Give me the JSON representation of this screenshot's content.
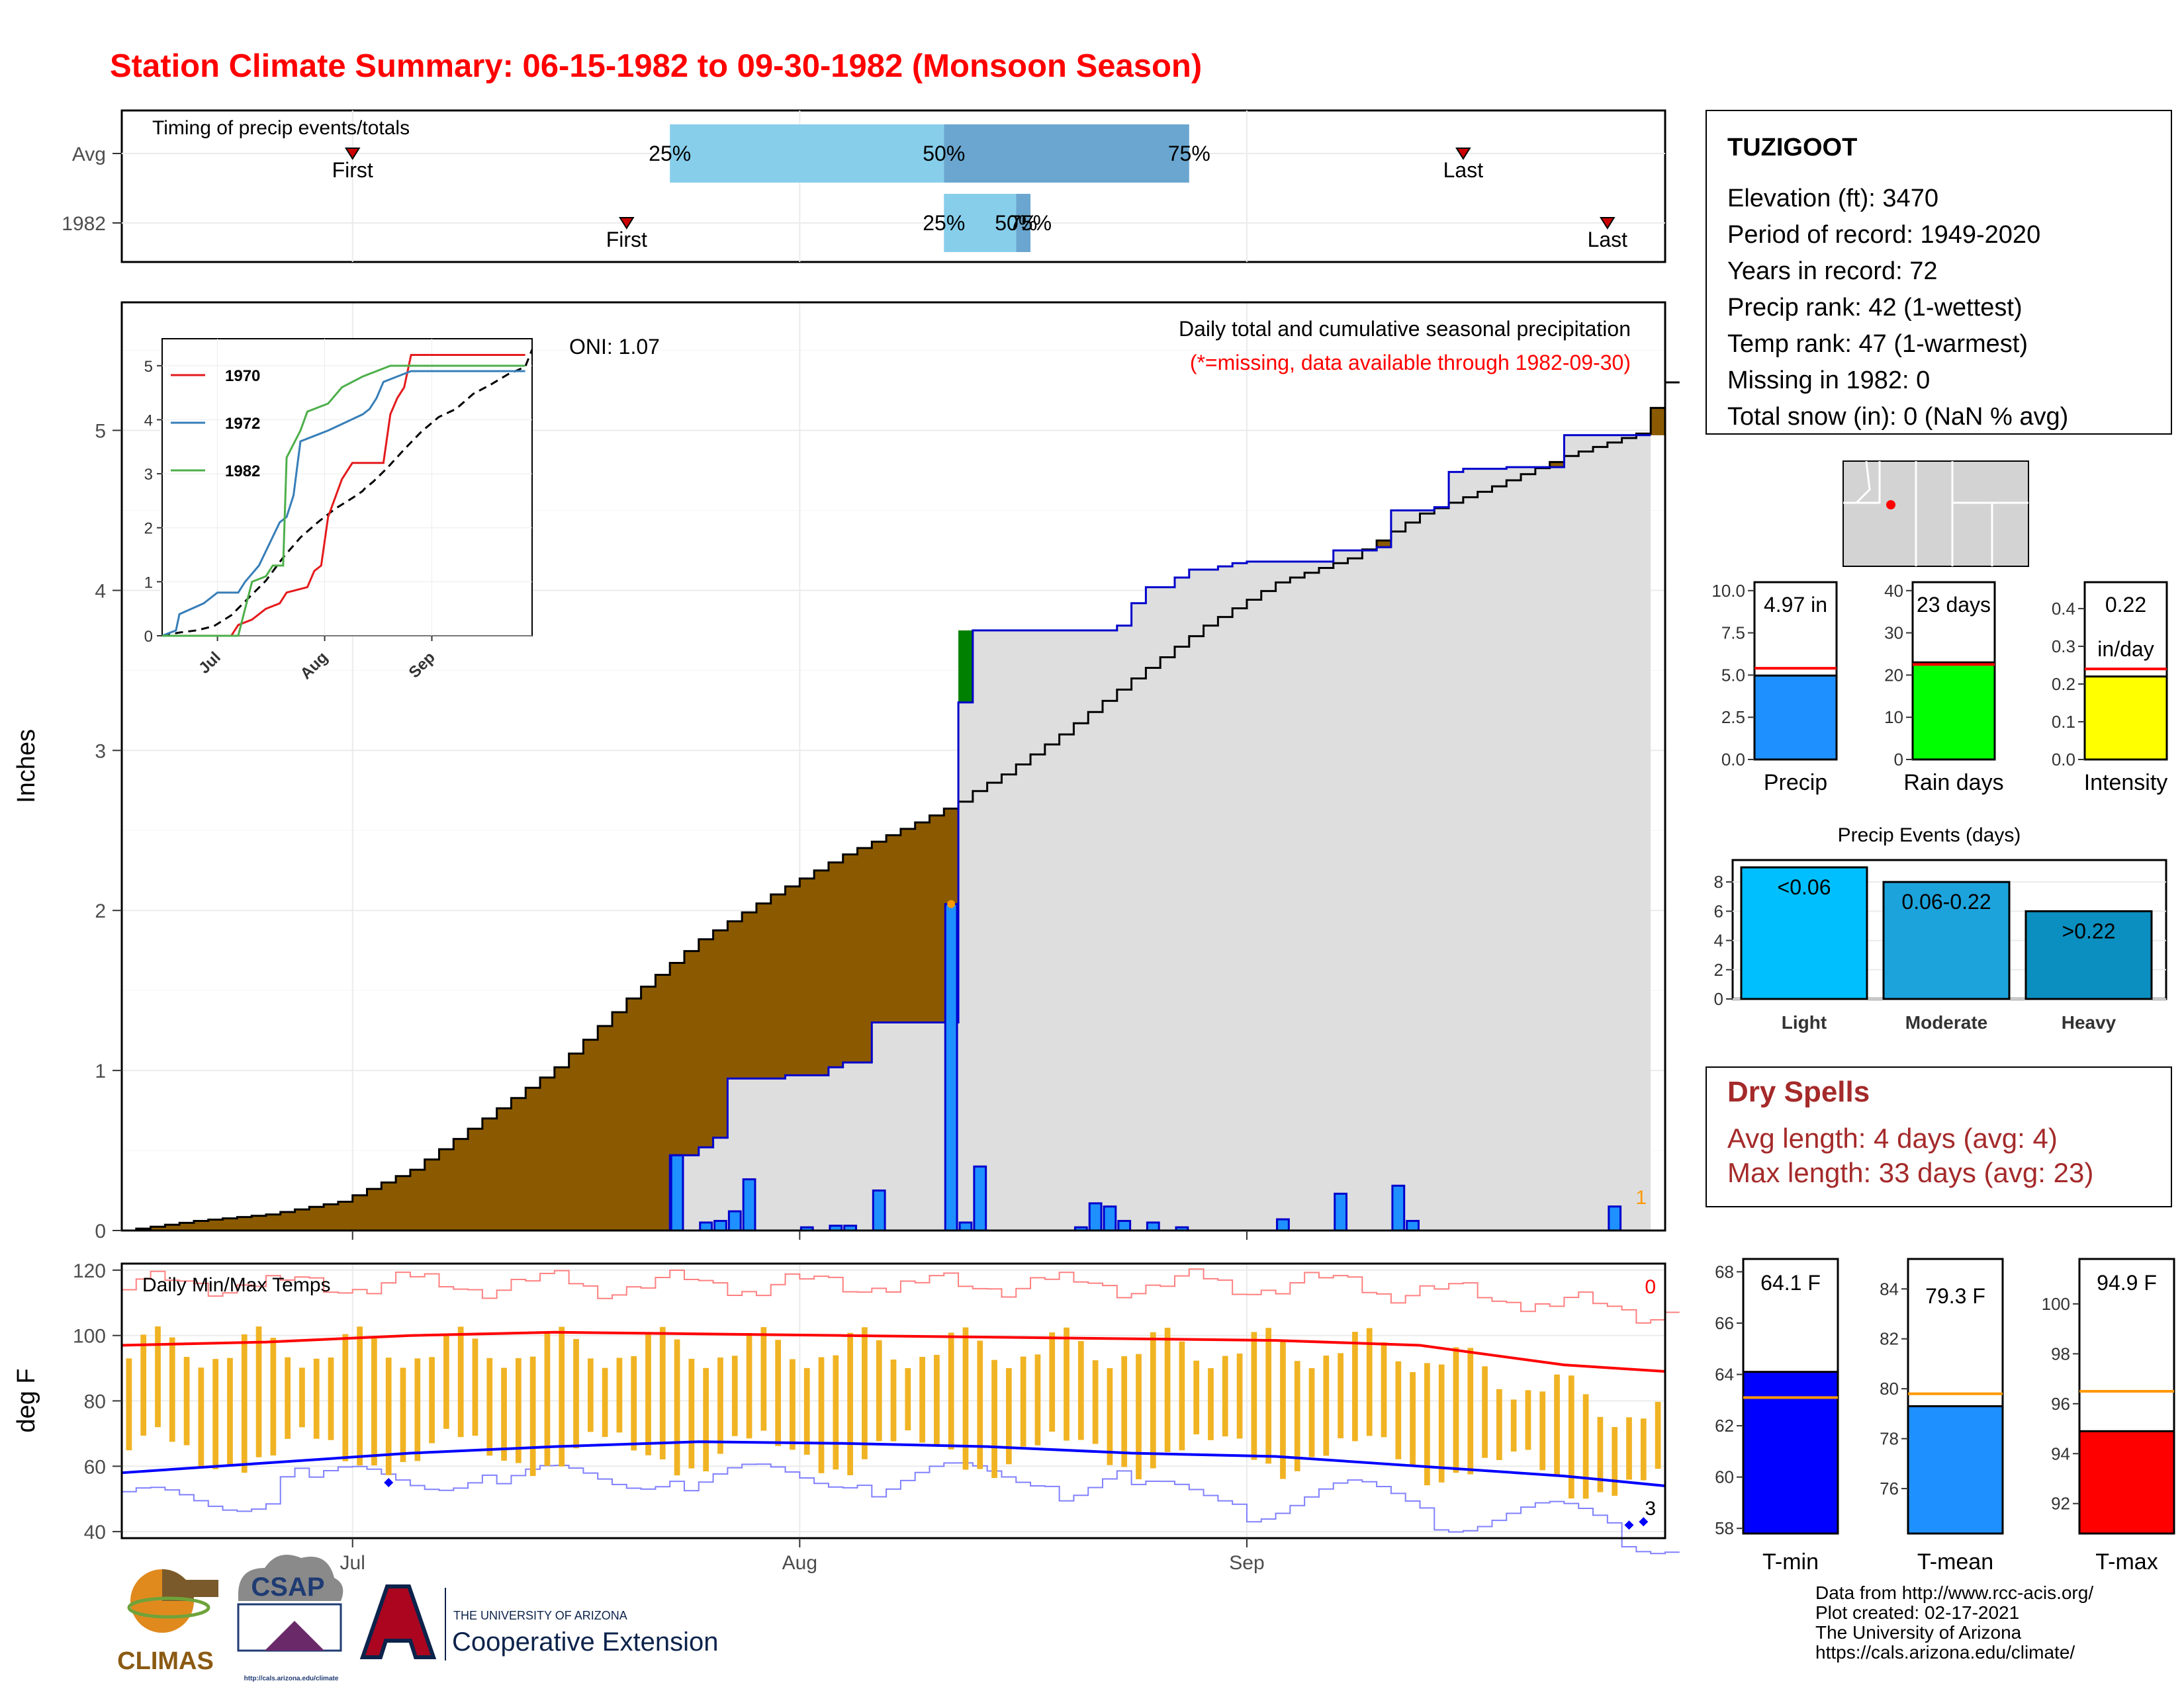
{
  "title": "Station Climate Summary: 06-15-1982 to 09-30-1982 (Monsoon Season)",
  "colors": {
    "title": "#ff0000",
    "cumulative_avg_fill": "#8b5a00",
    "above_avg_fill": "#008000",
    "precip_bar": "#1e90ff",
    "tmax_line": "#ff0000",
    "tmin_line": "#0000ff",
    "temp_bar": "#f0b323",
    "dry_spell_text": "#a52a2a"
  },
  "months": [
    "Jul",
    "Aug",
    "Sep"
  ],
  "timing_panel": {
    "label": "Timing of precip events/totals",
    "rows": [
      "Avg",
      "1982"
    ],
    "avg": {
      "first_day": 16,
      "q25_day": 38,
      "q50_day": 57,
      "q75_day": 74,
      "last_day": 93
    },
    "y1982": {
      "first_day": 35,
      "q25_day": 57,
      "q50_day": 62,
      "q75_day": 63,
      "last_day": 103
    },
    "first_label": "First",
    "last_label": "Last",
    "q_labels": [
      "25%",
      "50%",
      "75%"
    ]
  },
  "main_panel": {
    "ylabel": "Inches",
    "oni": "ONI: 1.07",
    "header": "Daily total and cumulative seasonal precipitation",
    "subheader": "(*=missing, data available through 1982-09-30)",
    "missing_count": "1",
    "ylim": [
      0,
      5.8
    ],
    "yticks": [
      0,
      1,
      2,
      3,
      4,
      5
    ]
  },
  "inset": {
    "series": [
      {
        "name": "1970",
        "color": "#e41a1c"
      },
      {
        "name": "1972",
        "color": "#377eb8"
      },
      {
        "name": "1982",
        "color": "#4daf4a"
      }
    ],
    "months": [
      "Jul",
      "Aug",
      "Sep"
    ],
    "yticks": [
      0,
      1,
      2,
      3,
      4,
      5
    ]
  },
  "temp_panel": {
    "label": "Daily Min/Max Temps",
    "ylabel": "deg F",
    "ylim": [
      38,
      122
    ],
    "yticks": [
      40,
      60,
      80,
      100,
      120
    ],
    "tmax_missing": "0",
    "tmin_missing": "3"
  },
  "station": {
    "name": "TUZIGOOT",
    "lines": [
      "Elevation (ft): 3470",
      "Period of record: 1949-2020",
      "Years in record: 72",
      "Precip rank: 42 (1-wettest)",
      "Temp rank: 47 (1-warmest)",
      "Missing in 1982: 0",
      "Total snow (in): 0 (NaN % avg)"
    ]
  },
  "summary_bars": [
    {
      "label": "Precip",
      "value_text": "4.97 in",
      "value": 4.97,
      "avg": 5.4,
      "ymax": 10.5,
      "ticks": [
        "0.0",
        "2.5",
        "5.0",
        "7.5",
        "10.0"
      ],
      "tick_vals": [
        0,
        2.5,
        5,
        7.5,
        10
      ],
      "color": "#1e90ff"
    },
    {
      "label": "Rain days",
      "value_text": "23 days",
      "value": 23,
      "avg": 22.5,
      "ymax": 42,
      "ticks": [
        "0",
        "10",
        "20",
        "30",
        "40"
      ],
      "tick_vals": [
        0,
        10,
        20,
        30,
        40
      ],
      "color": "#00ff00"
    },
    {
      "label": "Intensity",
      "value_text": "0.22",
      "value_text2": "in/day",
      "value": 0.22,
      "avg": 0.24,
      "ymax": 0.47,
      "ticks": [
        "0.0",
        "0.1",
        "0.2",
        "0.3",
        "0.4"
      ],
      "tick_vals": [
        0,
        0.1,
        0.2,
        0.3,
        0.4
      ],
      "color": "#ffff00"
    }
  ],
  "precip_events": {
    "title": "Precip Events (days)",
    "categories": [
      "Light",
      "Moderate",
      "Heavy"
    ],
    "bar_labels": [
      "<0.06",
      "0.06-0.22",
      ">0.22"
    ],
    "values": [
      9,
      8,
      6
    ],
    "colors": [
      "#00bfff",
      "#1ca3dc",
      "#0b8fc0"
    ],
    "yticks": [
      0,
      2,
      4,
      6,
      8
    ]
  },
  "dry_spells": {
    "title": "Dry Spells",
    "avg": "Avg length: 4 days (avg: 4)",
    "max": "Max length: 33 days (avg: 23)"
  },
  "temp_summary": [
    {
      "label": "T-min",
      "value_text": "64.1 F",
      "value": 64.1,
      "avg": 63.1,
      "ymin": 57.8,
      "ymax": 68.5,
      "ticks": [
        58,
        60,
        62,
        64,
        66,
        68
      ],
      "color": "#0000ff"
    },
    {
      "label": "T-mean",
      "value_text": "79.3 F",
      "value": 79.3,
      "avg": 79.8,
      "ymin": 74.2,
      "ymax": 85.2,
      "ticks": [
        76,
        78,
        80,
        82,
        84
      ],
      "color": "#1e90ff"
    },
    {
      "label": "T-max",
      "value_text": "94.9 F",
      "value": 94.9,
      "avg": 96.5,
      "ymin": 90.8,
      "ymax": 101.8,
      "ticks": [
        92,
        94,
        96,
        98,
        100
      ],
      "color": "#ff0000"
    }
  ],
  "footer": [
    "Data from http://www.rcc-acis.org/",
    "Plot created: 02-17-2021",
    "The University of Arizona",
    "https://cals.arizona.edu/climate/"
  ],
  "logos": {
    "climas": "CLIMAS",
    "csap": "CSAP",
    "csap_url": "http://cals.arizona.edu/climate",
    "ua_top": "THE UNIVERSITY OF ARIZONA",
    "ua_bottom": "Cooperative Extension"
  },
  "chart_data": [
    {
      "type": "area",
      "title": "Daily total and cumulative seasonal precipitation",
      "ylabel": "Inches",
      "x_start": "1982-06-15",
      "x_end": "1982-09-30",
      "ylim": [
        0,
        5.8
      ],
      "cumulative_1982": [
        [
          0,
          0
        ],
        [
          37,
          0
        ],
        [
          38,
          0.47
        ],
        [
          40,
          0.52
        ],
        [
          41,
          0.58
        ],
        [
          42,
          0.95
        ],
        [
          46,
          0.97
        ],
        [
          49,
          1.02
        ],
        [
          50,
          1.05
        ],
        [
          52,
          1.3
        ],
        [
          57,
          1.3
        ],
        [
          58,
          3.3
        ],
        [
          58.5,
          3.75
        ],
        [
          69,
          3.78
        ],
        [
          70,
          3.92
        ],
        [
          71,
          4.02
        ],
        [
          73,
          4.08
        ],
        [
          74,
          4.13
        ],
        [
          76,
          4.15
        ],
        [
          77,
          4.17
        ],
        [
          78,
          4.18
        ],
        [
          84,
          4.25
        ],
        [
          85,
          4.25
        ],
        [
          87,
          4.27
        ],
        [
          88,
          4.5
        ],
        [
          91,
          4.52
        ],
        [
          92,
          4.74
        ],
        [
          93,
          4.76
        ],
        [
          96,
          4.77
        ],
        [
          100,
          4.97
        ],
        [
          103,
          4.97
        ]
      ],
      "cumulative_avg": [
        [
          0,
          0
        ],
        [
          5,
          0.06
        ],
        [
          10,
          0.1
        ],
        [
          15,
          0.18
        ],
        [
          20,
          0.38
        ],
        [
          25,
          0.7
        ],
        [
          30,
          1.02
        ],
        [
          35,
          1.45
        ],
        [
          40,
          1.82
        ],
        [
          45,
          2.1
        ],
        [
          50,
          2.35
        ],
        [
          55,
          2.55
        ],
        [
          58,
          2.68
        ],
        [
          58.5,
          2.72
        ],
        [
          61,
          2.85
        ],
        [
          65,
          3.1
        ],
        [
          70,
          3.45
        ],
        [
          75,
          3.78
        ],
        [
          80,
          4.05
        ],
        [
          85,
          4.2
        ],
        [
          90,
          4.48
        ],
        [
          95,
          4.65
        ],
        [
          100,
          4.84
        ],
        [
          105,
          4.98
        ],
        [
          107,
          5.3
        ]
      ],
      "daily_precip_1982": [
        [
          38,
          0.47
        ],
        [
          40,
          0.05
        ],
        [
          41,
          0.06
        ],
        [
          42,
          0.12
        ],
        [
          43,
          0.32
        ],
        [
          47,
          0.02
        ],
        [
          49,
          0.03
        ],
        [
          50,
          0.03
        ],
        [
          52,
          0.25
        ],
        [
          57,
          2.04
        ],
        [
          58,
          0.05
        ],
        [
          59,
          0.4
        ],
        [
          66,
          0.02
        ],
        [
          67,
          0.17
        ],
        [
          68,
          0.15
        ],
        [
          69,
          0.06
        ],
        [
          71,
          0.05
        ],
        [
          73,
          0.02
        ],
        [
          80,
          0.07
        ],
        [
          84,
          0.23
        ],
        [
          88,
          0.28
        ],
        [
          89,
          0.06
        ],
        [
          103,
          0.15
        ]
      ]
    },
    {
      "type": "line",
      "title": "Daily Min/Max Temps",
      "ylabel": "deg F",
      "ylim": [
        38,
        122
      ],
      "avg_tmax": [
        [
          0,
          97
        ],
        [
          10,
          98
        ],
        [
          20,
          100
        ],
        [
          30,
          101
        ],
        [
          40,
          100.5
        ],
        [
          50,
          100
        ],
        [
          60,
          99.5
        ],
        [
          70,
          99
        ],
        [
          80,
          98.5
        ],
        [
          90,
          97
        ],
        [
          100,
          91
        ],
        [
          107,
          89
        ]
      ],
      "avg_tmin": [
        [
          0,
          58
        ],
        [
          10,
          61
        ],
        [
          20,
          64
        ],
        [
          30,
          66
        ],
        [
          40,
          67.5
        ],
        [
          50,
          67
        ],
        [
          60,
          66
        ],
        [
          70,
          64
        ],
        [
          80,
          63
        ],
        [
          90,
          60
        ],
        [
          100,
          57
        ],
        [
          107,
          54
        ]
      ]
    },
    {
      "type": "bar",
      "title": "Precip Events (days)",
      "categories": [
        "Light",
        "Moderate",
        "Heavy"
      ],
      "values": [
        9,
        8,
        6
      ]
    }
  ]
}
